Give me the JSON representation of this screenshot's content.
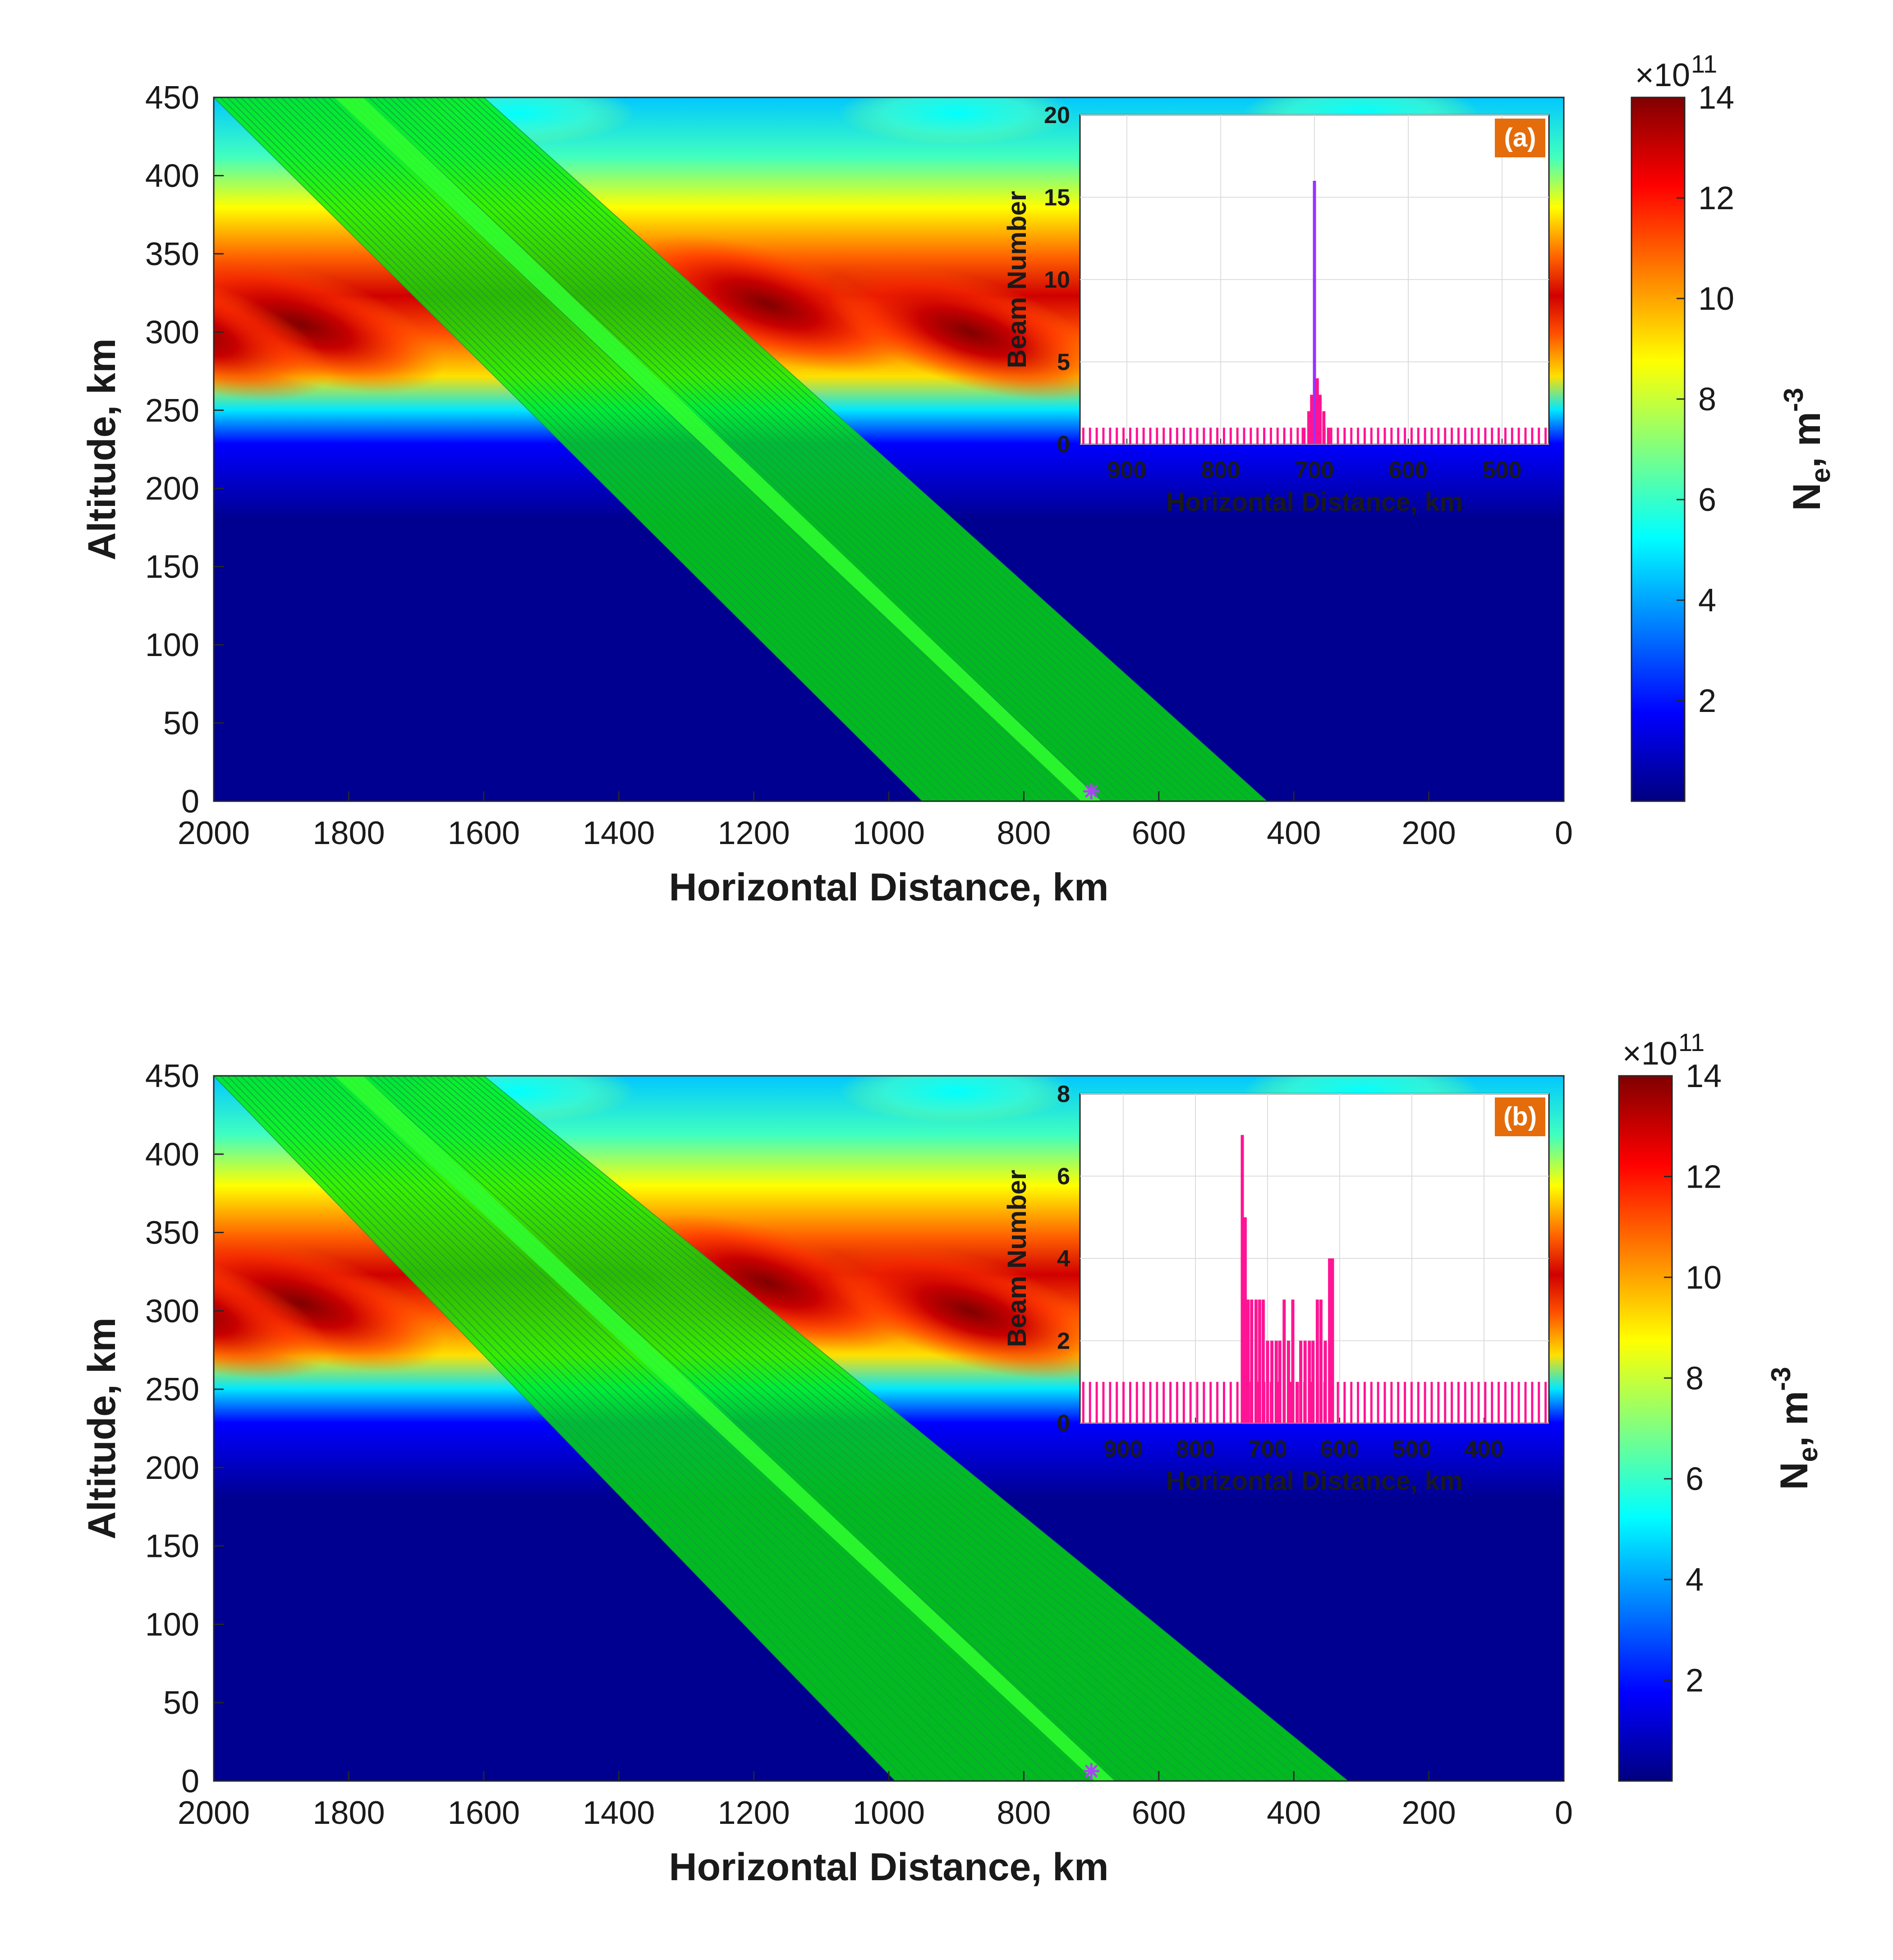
{
  "chart_data": [
    {
      "panel_label": "(a)",
      "type": "heatmap",
      "xlabel": "Horizontal Distance, km",
      "ylabel": "Altitude, km",
      "xlim": [
        2000,
        0
      ],
      "ylim": [
        0,
        450
      ],
      "xticks": [
        "2000",
        "1800",
        "1600",
        "1400",
        "1200",
        "1000",
        "800",
        "600",
        "400",
        "200",
        "0"
      ],
      "yticks": [
        "450",
        "400",
        "350",
        "300",
        "250",
        "200",
        "150",
        "100",
        "50",
        "0"
      ],
      "colorbar": {
        "label": "N",
        "label_sub": "e",
        "label_unit": ", m",
        "label_sup": "-3",
        "exponent_prefix": "×10",
        "exponent_sup": "11",
        "ticks": [
          "14",
          "12",
          "10",
          "8",
          "6",
          "4",
          "2"
        ],
        "range": [
          0,
          14
        ]
      },
      "beam_fan": {
        "top_x_range": [
          2000,
          1600
        ],
        "ground_x_range": [
          950,
          440
        ],
        "focus_band_top_x": 1800,
        "focus_band_ground_x": 700,
        "beam_color": "#00ee00"
      },
      "marker_x": 700,
      "marker_color": "#b040ff",
      "inset": {
        "type": "bar",
        "xlabel": "Horizontal Distance, km",
        "ylabel": "Beam Number",
        "xlim": [
          950,
          450
        ],
        "ylim": [
          0,
          20
        ],
        "xticks": [
          "900",
          "800",
          "700",
          "600",
          "500"
        ],
        "yticks": [
          "20",
          "15",
          "10",
          "5",
          "0"
        ],
        "bar_color": "#ff1493",
        "peak_color": "#9b30ff",
        "peaks": [
          {
            "x": 700,
            "value": 16
          },
          {
            "x": 697,
            "value": 4
          },
          {
            "x": 703,
            "value": 3
          },
          {
            "x": 694,
            "value": 3
          },
          {
            "x": 706,
            "value": 2
          },
          {
            "x": 690,
            "value": 2
          },
          {
            "x": 712,
            "value": 1
          },
          {
            "x": 685,
            "value": 1
          }
        ],
        "baseline_value": 1
      }
    },
    {
      "panel_label": "(b)",
      "type": "heatmap",
      "xlabel": "Horizontal Distance, km",
      "ylabel": "Altitude, km",
      "xlim": [
        2000,
        0
      ],
      "ylim": [
        0,
        450
      ],
      "xticks": [
        "2000",
        "1800",
        "1600",
        "1400",
        "1200",
        "1000",
        "800",
        "600",
        "400",
        "200",
        "0"
      ],
      "yticks": [
        "450",
        "400",
        "350",
        "300",
        "250",
        "200",
        "150",
        "100",
        "50",
        "0"
      ],
      "colorbar": {
        "label": "N",
        "label_sub": "e",
        "label_unit": ", m",
        "label_sup": "-3",
        "exponent_prefix": "×10",
        "exponent_sup": "11",
        "ticks": [
          "14",
          "12",
          "10",
          "8",
          "6",
          "4",
          "2"
        ],
        "range": [
          0,
          14
        ]
      },
      "beam_fan": {
        "top_x_range": [
          2000,
          1600
        ],
        "ground_x_range": [
          990,
          320
        ],
        "focus_band_top_x": 1800,
        "focus_band_ground_x": 680,
        "beam_color": "#00ee00"
      },
      "marker_x": 700,
      "marker_color": "#b040ff",
      "inset": {
        "type": "bar",
        "xlabel": "Horizontal Distance, km",
        "ylabel": "Beam Number",
        "xlim": [
          960,
          310
        ],
        "ylim": [
          0,
          8
        ],
        "xticks": [
          "900",
          "800",
          "700",
          "600",
          "500",
          "400"
        ],
        "yticks": [
          "8",
          "6",
          "4",
          "2",
          "0"
        ],
        "bar_color": "#ff1493",
        "peaks": [
          {
            "x": 735,
            "value": 7
          },
          {
            "x": 731,
            "value": 5
          },
          {
            "x": 727,
            "value": 3
          },
          {
            "x": 722,
            "value": 3
          },
          {
            "x": 716,
            "value": 3
          },
          {
            "x": 711,
            "value": 3
          },
          {
            "x": 706,
            "value": 3
          },
          {
            "x": 700,
            "value": 2
          },
          {
            "x": 694,
            "value": 2
          },
          {
            "x": 688,
            "value": 2
          },
          {
            "x": 683,
            "value": 2
          },
          {
            "x": 677,
            "value": 3
          },
          {
            "x": 671,
            "value": 2
          },
          {
            "x": 665,
            "value": 3
          },
          {
            "x": 659,
            "value": 1
          },
          {
            "x": 654,
            "value": 2
          },
          {
            "x": 648,
            "value": 2
          },
          {
            "x": 642,
            "value": 2
          },
          {
            "x": 637,
            "value": 2
          },
          {
            "x": 631,
            "value": 3
          },
          {
            "x": 626,
            "value": 3
          },
          {
            "x": 620,
            "value": 2
          },
          {
            "x": 614,
            "value": 4
          },
          {
            "x": 610,
            "value": 4
          }
        ],
        "baseline_value": 1
      }
    }
  ]
}
